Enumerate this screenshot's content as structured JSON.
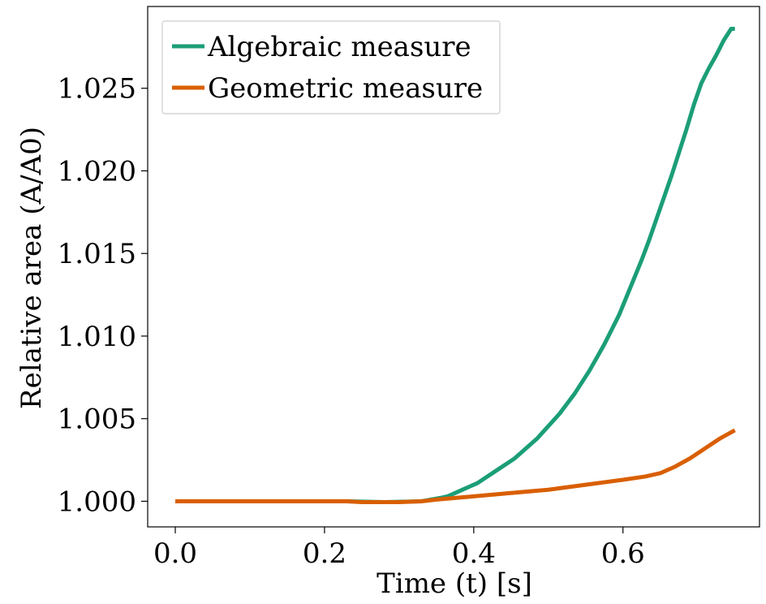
{
  "chart_data": {
    "type": "line",
    "xlabel": "Time (t) [s]",
    "ylabel": "Relative area (A/A0)",
    "x_ticks": [
      "0.0",
      "0.2",
      "0.4",
      "0.6"
    ],
    "y_ticks": [
      "1.000",
      "1.005",
      "1.010",
      "1.015",
      "1.020",
      "1.025"
    ],
    "xlim": [
      -0.037,
      0.783
    ],
    "ylim": [
      0.99845,
      1.02995
    ],
    "legend_position": "top-left",
    "grid": false,
    "series": [
      {
        "name": "Algebraic measure",
        "color": "#1b9e77",
        "x": [
          0.0,
          0.23,
          0.28,
          0.33,
          0.355,
          0.365,
          0.375,
          0.385,
          0.395,
          0.405,
          0.415,
          0.425,
          0.435,
          0.445,
          0.455,
          0.465,
          0.475,
          0.485,
          0.495,
          0.505,
          0.515,
          0.525,
          0.535,
          0.545,
          0.555,
          0.565,
          0.575,
          0.585,
          0.595,
          0.605,
          0.615,
          0.625,
          0.635,
          0.645,
          0.655,
          0.665,
          0.675,
          0.685,
          0.695,
          0.705,
          0.715,
          0.725,
          0.735,
          0.745,
          0.75
        ],
        "y": [
          1.0,
          1.0,
          0.99995,
          1.0,
          1.0002,
          1.0003,
          1.0005,
          1.0007,
          1.0009,
          1.0011,
          1.0014,
          1.0017,
          1.002,
          1.0023,
          1.0026,
          1.003,
          1.0034,
          1.0038,
          1.0043,
          1.0048,
          1.0053,
          1.0059,
          1.0065,
          1.0072,
          1.0079,
          1.0087,
          1.0095,
          1.0104,
          1.0113,
          1.0124,
          1.0135,
          1.0146,
          1.0158,
          1.0171,
          1.0184,
          1.0197,
          1.0211,
          1.0225,
          1.024,
          1.0253,
          1.0262,
          1.027,
          1.0279,
          1.0286,
          1.0286
        ]
      },
      {
        "name": "Geometric measure",
        "color": "#d95f02",
        "x": [
          0.0,
          0.23,
          0.25,
          0.3,
          0.33,
          0.35,
          0.4,
          0.45,
          0.5,
          0.55,
          0.6,
          0.63,
          0.65,
          0.67,
          0.69,
          0.71,
          0.73,
          0.75
        ],
        "y": [
          1.0,
          1.0,
          0.99995,
          0.99995,
          1.0,
          1.0001,
          1.0003,
          1.0005,
          1.0007,
          1.001,
          1.0013,
          1.0015,
          1.0017,
          1.0021,
          1.0026,
          1.0032,
          1.0038,
          1.0043
        ]
      }
    ]
  }
}
